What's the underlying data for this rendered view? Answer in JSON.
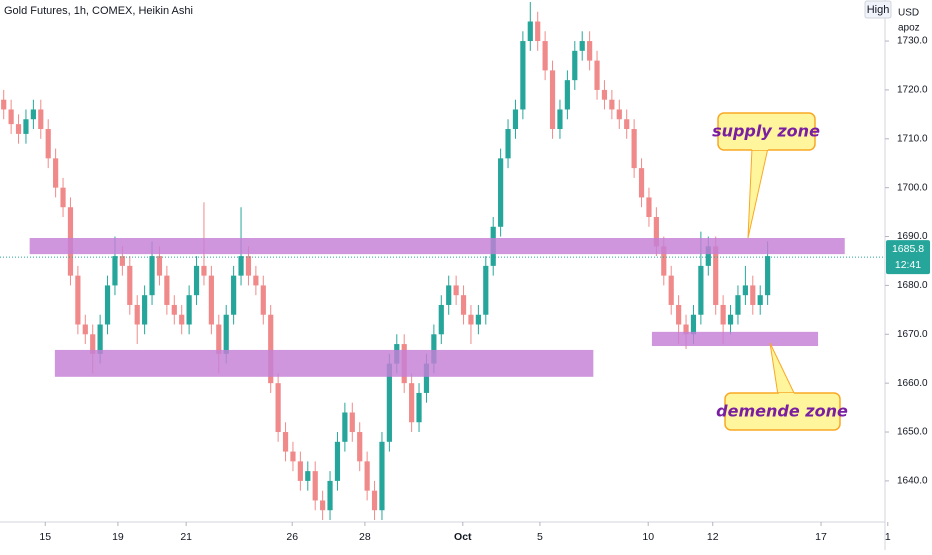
{
  "chart_data": {
    "type": "candlestick",
    "title": "Gold Futures, 1h, COMEX, Heikin Ashi",
    "currency": "USD",
    "author": "apoz",
    "scale_button": "High",
    "up_color": "#26a69a",
    "down_color": "#f08a8a",
    "ylim": [
      1632,
      1738.4
    ],
    "yticks": [
      {
        "value": 1640,
        "label": "1640.0"
      },
      {
        "value": 1650,
        "label": "1650.0"
      },
      {
        "value": 1660,
        "label": "1660.0"
      },
      {
        "value": 1670,
        "label": "1670.0"
      },
      {
        "value": 1680,
        "label": "1680.0"
      },
      {
        "value": 1690,
        "label": "1690.0"
      },
      {
        "value": 1700,
        "label": "1700.0"
      },
      {
        "value": 1710,
        "label": "1710.0"
      },
      {
        "value": 1720,
        "label": "1720.0"
      },
      {
        "value": 1730,
        "label": "1730.0"
      }
    ],
    "xlim": [
      0,
      120
    ],
    "xticks": [
      {
        "value": 6.1,
        "label": "15"
      },
      {
        "value": 15.9,
        "label": "19"
      },
      {
        "value": 25.1,
        "label": "21"
      },
      {
        "value": 39.4,
        "label": "26"
      },
      {
        "value": 49.2,
        "label": "28"
      },
      {
        "value": 62.4,
        "label": "Oct"
      },
      {
        "value": 72.8,
        "label": "5"
      },
      {
        "value": 87.4,
        "label": "10"
      },
      {
        "value": 96.1,
        "label": "12"
      },
      {
        "value": 110.7,
        "label": "17"
      },
      {
        "value": 119.7,
        "label": "1"
      }
    ],
    "candles": [
      [
        1718,
        1720,
        1714,
        1716
      ],
      [
        1716,
        1718,
        1711,
        1713
      ],
      [
        1713,
        1715,
        1709,
        1711
      ],
      [
        1711,
        1716,
        1709,
        1714
      ],
      [
        1714,
        1718,
        1712,
        1716
      ],
      [
        1716,
        1718,
        1710,
        1712
      ],
      [
        1712,
        1714,
        1704,
        1706
      ],
      [
        1706,
        1708,
        1698,
        1700
      ],
      [
        1700,
        1702,
        1694,
        1696
      ],
      [
        1696,
        1698,
        1680,
        1682
      ],
      [
        1682,
        1684,
        1670,
        1672
      ],
      [
        1672,
        1674,
        1668,
        1670
      ],
      [
        1670,
        1672,
        1662,
        1666
      ],
      [
        1666,
        1674,
        1664,
        1672
      ],
      [
        1672,
        1682,
        1670,
        1680
      ],
      [
        1680,
        1690,
        1678,
        1686
      ],
      [
        1686,
        1688,
        1682,
        1684
      ],
      [
        1684,
        1686,
        1674,
        1676
      ],
      [
        1676,
        1678,
        1668,
        1672
      ],
      [
        1672,
        1680,
        1670,
        1678
      ],
      [
        1678,
        1689,
        1676,
        1686
      ],
      [
        1686,
        1688,
        1680,
        1682
      ],
      [
        1682,
        1684,
        1674,
        1676
      ],
      [
        1676,
        1678,
        1672,
        1674
      ],
      [
        1674,
        1676,
        1670,
        1672
      ],
      [
        1672,
        1680,
        1670,
        1678
      ],
      [
        1678,
        1686,
        1676,
        1684
      ],
      [
        1684,
        1697,
        1680,
        1682
      ],
      [
        1682,
        1684,
        1670,
        1672
      ],
      [
        1672,
        1674,
        1662,
        1666
      ],
      [
        1666,
        1676,
        1664,
        1674
      ],
      [
        1674,
        1684,
        1672,
        1682
      ],
      [
        1682,
        1696,
        1680,
        1686
      ],
      [
        1686,
        1688,
        1680,
        1682
      ],
      [
        1682,
        1684,
        1678,
        1680
      ],
      [
        1680,
        1682,
        1672,
        1674
      ],
      [
        1674,
        1676,
        1658,
        1660
      ],
      [
        1660,
        1662,
        1648,
        1650
      ],
      [
        1650,
        1652,
        1644,
        1646
      ],
      [
        1646,
        1648,
        1642,
        1644
      ],
      [
        1644,
        1646,
        1638,
        1640
      ],
      [
        1640,
        1644,
        1638,
        1642
      ],
      [
        1642,
        1644,
        1634,
        1636
      ],
      [
        1636,
        1638,
        1632,
        1634
      ],
      [
        1634,
        1642,
        1632,
        1640
      ],
      [
        1640,
        1650,
        1638,
        1648
      ],
      [
        1648,
        1656,
        1646,
        1654
      ],
      [
        1654,
        1656,
        1648,
        1650
      ],
      [
        1650,
        1652,
        1642,
        1644
      ],
      [
        1644,
        1646,
        1636,
        1638
      ],
      [
        1638,
        1640,
        1632,
        1634
      ],
      [
        1634,
        1650,
        1632,
        1648
      ],
      [
        1648,
        1666,
        1646,
        1664
      ],
      [
        1664,
        1670,
        1662,
        1668
      ],
      [
        1668,
        1670,
        1658,
        1660
      ],
      [
        1660,
        1662,
        1650,
        1652
      ],
      [
        1652,
        1660,
        1650,
        1658
      ],
      [
        1658,
        1666,
        1656,
        1664
      ],
      [
        1664,
        1672,
        1662,
        1670
      ],
      [
        1670,
        1678,
        1668,
        1676
      ],
      [
        1676,
        1682,
        1674,
        1680
      ],
      [
        1680,
        1682,
        1676,
        1678
      ],
      [
        1678,
        1680,
        1672,
        1674
      ],
      [
        1674,
        1676,
        1668,
        1672
      ],
      [
        1672,
        1676,
        1670,
        1674
      ],
      [
        1674,
        1686,
        1672,
        1684
      ],
      [
        1684,
        1694,
        1682,
        1692
      ],
      [
        1692,
        1708,
        1690,
        1706
      ],
      [
        1706,
        1714,
        1704,
        1712
      ],
      [
        1712,
        1718,
        1710,
        1716
      ],
      [
        1716,
        1732,
        1714,
        1730
      ],
      [
        1730,
        1738,
        1728,
        1734
      ],
      [
        1734,
        1736,
        1728,
        1730
      ],
      [
        1730,
        1732,
        1722,
        1724
      ],
      [
        1724,
        1726,
        1710,
        1712
      ],
      [
        1712,
        1718,
        1710,
        1716
      ],
      [
        1716,
        1724,
        1714,
        1722
      ],
      [
        1722,
        1730,
        1720,
        1728
      ],
      [
        1728,
        1732,
        1726,
        1730
      ],
      [
        1730,
        1732,
        1724,
        1726
      ],
      [
        1726,
        1728,
        1718,
        1720
      ],
      [
        1720,
        1722,
        1716,
        1718
      ],
      [
        1718,
        1720,
        1714,
        1716
      ],
      [
        1716,
        1718,
        1712,
        1714
      ],
      [
        1714,
        1716,
        1710,
        1712
      ],
      [
        1712,
        1714,
        1702,
        1704
      ],
      [
        1704,
        1706,
        1696,
        1698
      ],
      [
        1698,
        1700,
        1692,
        1694
      ],
      [
        1694,
        1696,
        1686,
        1688
      ],
      [
        1688,
        1690,
        1680,
        1682
      ],
      [
        1682,
        1684,
        1674,
        1676
      ],
      [
        1676,
        1678,
        1668,
        1672
      ],
      [
        1672,
        1674,
        1667,
        1670
      ],
      [
        1670,
        1676,
        1668,
        1674
      ],
      [
        1674,
        1691,
        1672,
        1684
      ],
      [
        1684,
        1690,
        1682,
        1688
      ],
      [
        1688,
        1690,
        1674,
        1676
      ],
      [
        1676,
        1678,
        1668,
        1672
      ],
      [
        1672,
        1676,
        1670,
        1674
      ],
      [
        1674,
        1680,
        1672,
        1678
      ],
      [
        1678,
        1684,
        1676,
        1680
      ],
      [
        1680,
        1682,
        1674,
        1676
      ],
      [
        1676,
        1680,
        1674,
        1678
      ],
      [
        1678,
        1689,
        1676,
        1686
      ]
    ],
    "zones": [
      {
        "x": [
          4.0,
          113.9
        ],
        "y": [
          1686.4,
          1689.7
        ]
      },
      {
        "x": [
          7.4,
          80.0
        ],
        "y": [
          1661.3,
          1666.8
        ]
      },
      {
        "x": [
          87.9,
          110.3
        ],
        "y": [
          1667.6,
          1670.5
        ]
      }
    ],
    "zone_color": "#c47fd6",
    "last_price": 1685.8,
    "countdown": "12:41",
    "annotations": [
      "supply zone",
      "demende zone"
    ]
  }
}
